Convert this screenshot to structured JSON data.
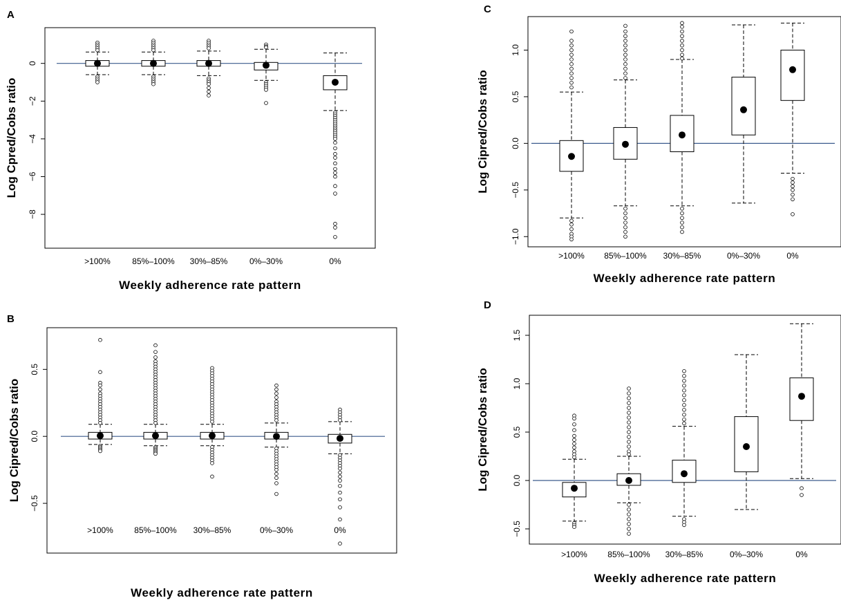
{
  "chart_data": [
    {
      "panel": "A",
      "type": "box",
      "ylabel": "Log Cpred/Cobs ratio",
      "xlabel": "Weekly adherence rate pattern",
      "categories": [
        ">100%",
        "85%–100%",
        "30%–85%",
        "0%–30%",
        "0%"
      ],
      "ylim": [
        -9.5,
        1.6
      ],
      "yticks": [
        0,
        -2,
        -4,
        -6,
        -8
      ],
      "ytick_labels": [
        "0",
        "−2",
        "−4",
        "−6",
        "−8"
      ],
      "reference_line": 0,
      "boxes": [
        {
          "whisker_low": -0.6,
          "q1": -0.15,
          "median": 0.0,
          "q3": 0.15,
          "whisker_high": 0.6,
          "outliers": [
            1.1,
            1.0,
            0.9,
            0.8,
            0.7,
            -0.7,
            -0.8,
            -0.9,
            -1.0
          ]
        },
        {
          "whisker_low": -0.6,
          "q1": -0.15,
          "median": 0.0,
          "q3": 0.15,
          "whisker_high": 0.6,
          "outliers": [
            1.2,
            1.1,
            1.0,
            0.9,
            0.8,
            0.7,
            -0.7,
            -0.8,
            -0.9,
            -1.0,
            -1.1
          ]
        },
        {
          "whisker_low": -0.65,
          "q1": -0.15,
          "median": 0.0,
          "q3": 0.15,
          "whisker_high": 0.65,
          "outliers": [
            1.2,
            1.1,
            1.0,
            0.9,
            0.8,
            -0.8,
            -0.9,
            -1.0,
            -1.1,
            -1.3,
            -1.5,
            -1.7
          ]
        },
        {
          "whisker_low": -0.9,
          "q1": -0.35,
          "median": -0.1,
          "q3": 0.05,
          "whisker_high": 0.75,
          "outliers": [
            1.0,
            0.9,
            0.85,
            -1.0,
            -1.1,
            -1.2,
            -1.3,
            -1.4,
            -2.1
          ]
        },
        {
          "whisker_low": -2.5,
          "q1": -1.4,
          "median": -1.0,
          "q3": -0.65,
          "whisker_high": 0.55,
          "outliers": [
            -2.6,
            -2.7,
            -2.8,
            -2.9,
            -3.0,
            -3.1,
            -3.2,
            -3.3,
            -3.4,
            -3.5,
            -3.6,
            -3.7,
            -3.8,
            -3.9,
            -4.0,
            -4.2,
            -4.5,
            -4.8,
            -5.0,
            -5.3,
            -5.6,
            -5.8,
            -6.0,
            -6.5,
            -6.9,
            -8.5,
            -8.7,
            -9.2
          ]
        }
      ]
    },
    {
      "panel": "B",
      "type": "box",
      "ylabel": "Log Cipred/Cobs ratio",
      "xlabel": "Weekly adherence rate pattern",
      "categories": [
        ">100%",
        "85%–100%",
        "30%–85%",
        "0%–30%",
        "0%"
      ],
      "ylim": [
        -0.83,
        0.77
      ],
      "yticks": [
        0.5,
        0.0,
        -0.5
      ],
      "ytick_labels": [
        "0.5",
        "0.0",
        "−0.5"
      ],
      "reference_line": 0,
      "boxes": [
        {
          "whisker_low": -0.06,
          "q1": -0.02,
          "median": 0.005,
          "q3": 0.03,
          "whisker_high": 0.09,
          "outliers": [
            0.72,
            0.48,
            0.4,
            0.38,
            0.35,
            0.32,
            0.3,
            0.28,
            0.26,
            0.24,
            0.22,
            0.2,
            0.18,
            0.16,
            0.14,
            0.12,
            0.1,
            -0.07,
            -0.08,
            -0.09,
            -0.1,
            -0.11
          ]
        },
        {
          "whisker_low": -0.07,
          "q1": -0.02,
          "median": 0.005,
          "q3": 0.03,
          "whisker_high": 0.09,
          "outliers": [
            0.68,
            0.63,
            0.59,
            0.56,
            0.54,
            0.52,
            0.5,
            0.48,
            0.46,
            0.44,
            0.42,
            0.4,
            0.38,
            0.36,
            0.34,
            0.32,
            0.3,
            0.28,
            0.26,
            0.24,
            0.22,
            0.2,
            0.18,
            0.16,
            0.14,
            0.12,
            0.1,
            -0.08,
            -0.09,
            -0.1,
            -0.11,
            -0.12,
            -0.13
          ]
        },
        {
          "whisker_low": -0.07,
          "q1": -0.02,
          "median": 0.005,
          "q3": 0.03,
          "whisker_high": 0.09,
          "outliers": [
            0.51,
            0.49,
            0.47,
            0.45,
            0.43,
            0.41,
            0.39,
            0.37,
            0.35,
            0.33,
            0.31,
            0.29,
            0.27,
            0.25,
            0.23,
            0.21,
            0.19,
            0.17,
            0.15,
            0.13,
            0.11,
            -0.08,
            -0.1,
            -0.12,
            -0.14,
            -0.16,
            -0.18,
            -0.2,
            -0.3
          ]
        },
        {
          "whisker_low": -0.08,
          "q1": -0.02,
          "median": 0.0,
          "q3": 0.03,
          "whisker_high": 0.1,
          "outliers": [
            0.38,
            0.35,
            0.32,
            0.29,
            0.26,
            0.24,
            0.22,
            0.2,
            0.18,
            0.16,
            0.14,
            0.12,
            -0.09,
            -0.11,
            -0.13,
            -0.15,
            -0.17,
            -0.19,
            -0.21,
            -0.23,
            -0.25,
            -0.28,
            -0.31,
            -0.35,
            -0.43
          ]
        },
        {
          "whisker_low": -0.13,
          "q1": -0.05,
          "median": -0.015,
          "q3": 0.015,
          "whisker_high": 0.11,
          "outliers": [
            0.2,
            0.18,
            0.16,
            0.14,
            0.12,
            -0.14,
            -0.16,
            -0.18,
            -0.2,
            -0.22,
            -0.24,
            -0.27,
            -0.3,
            -0.33,
            -0.37,
            -0.42,
            -0.47,
            -0.53,
            -0.62,
            -0.8
          ]
        }
      ]
    },
    {
      "panel": "C",
      "type": "box",
      "ylabel": "Log Cipred/Cobs ratio",
      "xlabel": "Weekly adherence rate pattern",
      "categories": [
        ">100%",
        "85%–100%",
        "30%–85%",
        "0%–30%",
        "0%"
      ],
      "ylim": [
        -1.05,
        1.3
      ],
      "yticks": [
        1.0,
        0.5,
        0.0,
        -0.5,
        -1.0
      ],
      "ytick_labels": [
        "1.0",
        "0.5",
        "0.0",
        "−0.5",
        "−1.0"
      ],
      "reference_line": 0,
      "boxes": [
        {
          "whisker_low": -0.8,
          "q1": -0.3,
          "median": -0.14,
          "q3": 0.03,
          "whisker_high": 0.55,
          "outliers": [
            1.2,
            1.1,
            1.05,
            1.0,
            0.95,
            0.9,
            0.85,
            0.8,
            0.75,
            0.7,
            0.65,
            0.6,
            -0.83,
            -0.87,
            -0.92,
            -0.97,
            -1.0,
            -1.03
          ]
        },
        {
          "whisker_low": -0.67,
          "q1": -0.17,
          "median": -0.01,
          "q3": 0.17,
          "whisker_high": 0.68,
          "outliers": [
            1.26,
            1.2,
            1.15,
            1.1,
            1.05,
            1.0,
            0.95,
            0.9,
            0.85,
            0.8,
            0.75,
            0.7,
            -0.7,
            -0.75,
            -0.8,
            -0.85,
            -0.9,
            -0.95,
            -1.0
          ]
        },
        {
          "whisker_low": -0.67,
          "q1": -0.09,
          "median": 0.09,
          "q3": 0.3,
          "whisker_high": 0.9,
          "outliers": [
            1.29,
            1.25,
            1.2,
            1.15,
            1.1,
            1.05,
            1.0,
            0.95,
            0.91,
            -0.7,
            -0.75,
            -0.8,
            -0.85,
            -0.9,
            -0.95
          ]
        },
        {
          "whisker_low": -0.64,
          "q1": 0.09,
          "median": 0.36,
          "q3": 0.71,
          "whisker_high": 1.27,
          "outliers": []
        },
        {
          "whisker_low": -0.32,
          "q1": 0.46,
          "median": 0.79,
          "q3": 1.0,
          "whisker_high": 1.29,
          "outliers": [
            -0.38,
            -0.42,
            -0.46,
            -0.5,
            -0.55,
            -0.6,
            -0.76
          ]
        }
      ]
    },
    {
      "panel": "D",
      "type": "box",
      "ylabel": "Log Cipred/Cobs ratio",
      "xlabel": "Weekly adherence rate pattern",
      "categories": [
        ">100%",
        "85%–100%",
        "30%–85%",
        "0%–30%",
        "0%"
      ],
      "ylim": [
        -0.6,
        1.65
      ],
      "yticks": [
        1.5,
        1.0,
        0.5,
        0.0,
        -0.5
      ],
      "ytick_labels": [
        "1.5",
        "1.0",
        "0.5",
        "0.0",
        "−0.5"
      ],
      "reference_line": 0,
      "boxes": [
        {
          "whisker_low": -0.42,
          "q1": -0.17,
          "median": -0.08,
          "q3": -0.02,
          "whisker_high": 0.22,
          "outliers": [
            0.67,
            0.64,
            0.58,
            0.52,
            0.46,
            0.42,
            0.38,
            0.34,
            0.3,
            0.27,
            0.24,
            -0.44,
            -0.46,
            -0.48
          ]
        },
        {
          "whisker_low": -0.23,
          "q1": -0.05,
          "median": 0.0,
          "q3": 0.07,
          "whisker_high": 0.25,
          "outliers": [
            0.95,
            0.9,
            0.85,
            0.8,
            0.75,
            0.7,
            0.65,
            0.6,
            0.55,
            0.5,
            0.45,
            0.4,
            0.35,
            0.3,
            0.27,
            -0.25,
            -0.3,
            -0.35,
            -0.4,
            -0.45,
            -0.5,
            -0.55
          ]
        },
        {
          "whisker_low": -0.37,
          "q1": -0.02,
          "median": 0.07,
          "q3": 0.21,
          "whisker_high": 0.56,
          "outliers": [
            1.13,
            1.08,
            1.03,
            0.98,
            0.93,
            0.88,
            0.83,
            0.78,
            0.73,
            0.68,
            0.63,
            0.59,
            -0.4,
            -0.43,
            -0.46
          ]
        },
        {
          "whisker_low": -0.3,
          "q1": 0.09,
          "median": 0.35,
          "q3": 0.66,
          "whisker_high": 1.3,
          "outliers": []
        },
        {
          "whisker_low": 0.02,
          "q1": 0.62,
          "median": 0.87,
          "q3": 1.06,
          "whisker_high": 1.62,
          "outliers": [
            -0.08,
            -0.15
          ]
        }
      ]
    }
  ]
}
